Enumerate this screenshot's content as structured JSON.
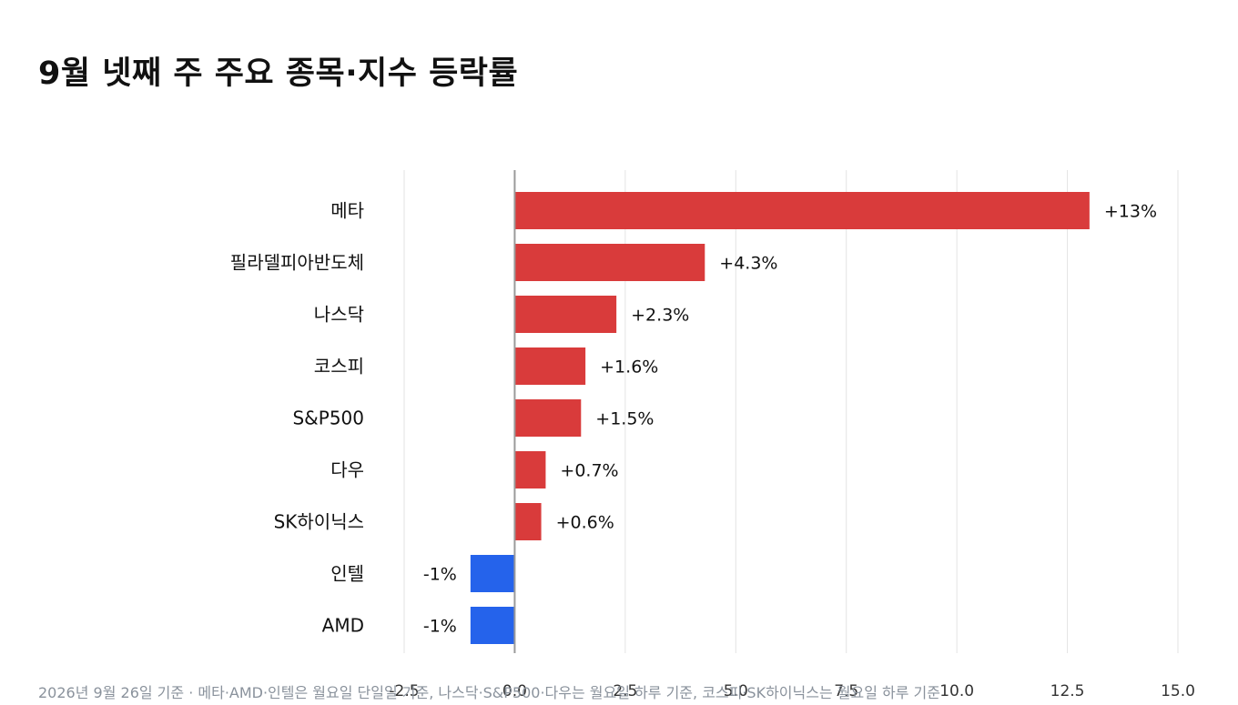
{
  "chart_data": {
    "type": "bar",
    "orientation": "horizontal",
    "title": "9월 넷째 주 주요 종목·지수 등락률",
    "categories": [
      "메타",
      "필라델피아반도체",
      "나스닥",
      "코스피",
      "S&P500",
      "다우",
      "SK하이닉스",
      "인텔",
      "AMD"
    ],
    "values": [
      13,
      4.3,
      2.3,
      1.6,
      1.5,
      0.7,
      0.6,
      -1,
      -1
    ],
    "data_labels": [
      "+13%",
      "+4.3%",
      "+2.3%",
      "+1.6%",
      "+1.5%",
      "+0.7%",
      "+0.6%",
      "-1%",
      "-1%"
    ],
    "xlim": [
      -2.5,
      15.0
    ],
    "xticks": [
      -2.5,
      0.0,
      2.5,
      5.0,
      7.5,
      10.0,
      12.5,
      15.0
    ],
    "xtick_labels": [
      "-2.5",
      "0.0",
      "2.5",
      "5.0",
      "7.5",
      "10.0",
      "12.5",
      "15.0"
    ],
    "grid": true,
    "colors": {
      "positive": "#d93b3b",
      "negative": "#2563eb",
      "grid": "#e3e3e3",
      "zero_line": "#9a9a9a"
    }
  },
  "footnote": "2026년 9월 26일 기준 · 메타·AMD·인텔은 월요일 단일일 기준, 나스닥·S&P500·다우는 월요일 하루 기준, 코스피·SK하이닉스는 월요일 하루 기준"
}
